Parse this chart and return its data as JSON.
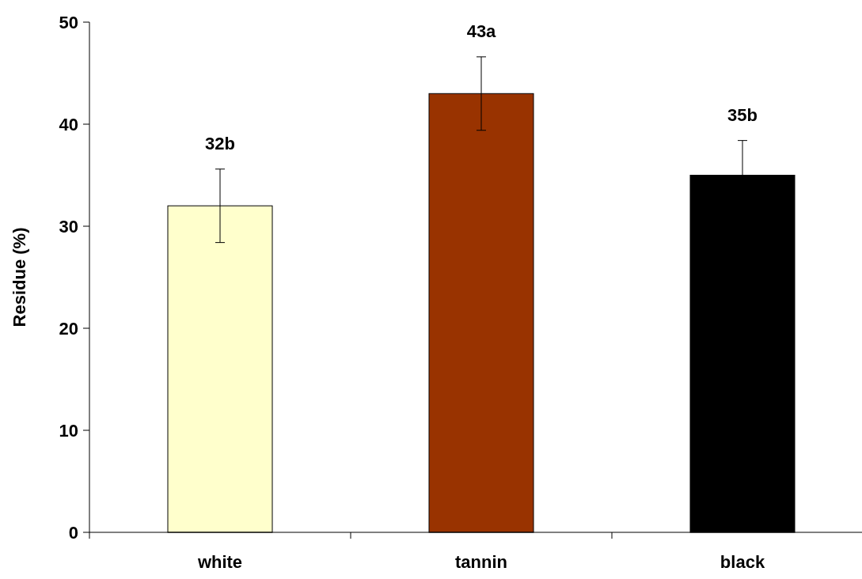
{
  "chart_data": {
    "type": "bar",
    "ylabel": "Residue (%)",
    "categories": [
      "white",
      "tannin",
      "black"
    ],
    "values": [
      32,
      43,
      35
    ],
    "colors": [
      "#ffffcc",
      "#993300",
      "#000000"
    ],
    "errors": [
      3.6,
      3.6,
      3.4
    ],
    "value_labels": [
      "32b",
      "43a",
      "35b"
    ],
    "ylim": [
      0,
      50
    ],
    "yticks": [
      0,
      10,
      20,
      30,
      40,
      50
    ],
    "grid": false
  }
}
